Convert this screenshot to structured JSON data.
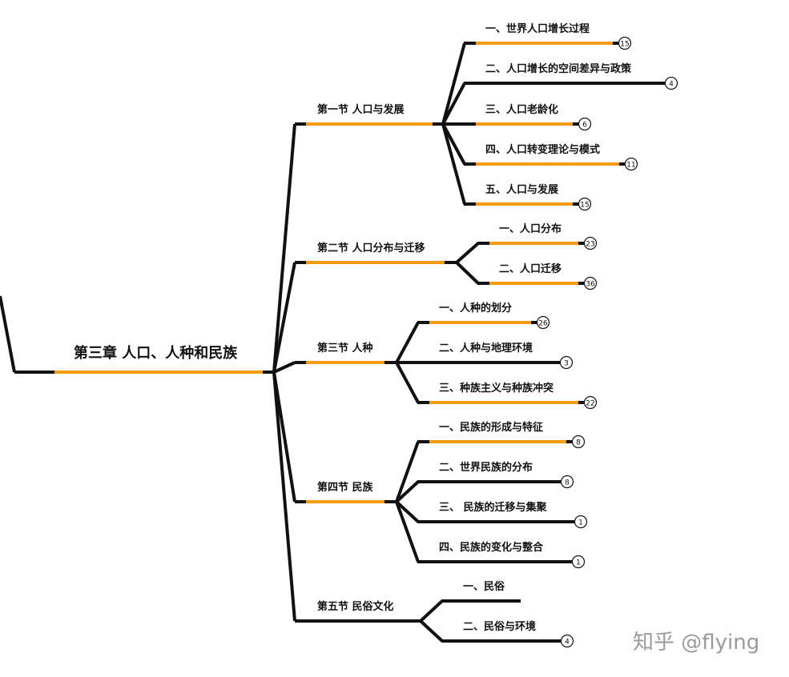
{
  "root": {
    "label": "第三章 人口、人种和民族",
    "highlighted": true
  },
  "colors": {
    "line": "#111111",
    "accent": "#f39c12"
  },
  "sections": [
    {
      "label": "第一节 人口与发展",
      "highlighted": true,
      "children": [
        {
          "label": "一、世界人口增长过程",
          "count": "15",
          "highlighted": true
        },
        {
          "label": "二、人口增长的空间差异与政策",
          "count": "4",
          "highlighted": false
        },
        {
          "label": "三、人口老龄化",
          "count": "6",
          "highlighted": true
        },
        {
          "label": "四、人口转变理论与模式",
          "count": "11",
          "highlighted": true
        },
        {
          "label": "五、人口与发展",
          "count": "15",
          "highlighted": true
        }
      ]
    },
    {
      "label": "第二节 人口分布与迁移",
      "highlighted": true,
      "children": [
        {
          "label": "一、人口分布",
          "count": "23",
          "highlighted": true
        },
        {
          "label": "二、人口迁移",
          "count": "36",
          "highlighted": true
        }
      ]
    },
    {
      "label": "第三节 人种",
      "highlighted": true,
      "children": [
        {
          "label": "一、人种的划分",
          "count": "26",
          "highlighted": true
        },
        {
          "label": "二、人种与地理环境",
          "count": "3",
          "highlighted": false
        },
        {
          "label": "三、种族主义与种族冲突",
          "count": "22",
          "highlighted": true
        }
      ]
    },
    {
      "label": "第四节 民族",
      "highlighted": true,
      "children": [
        {
          "label": "一、民族的形成与特征",
          "count": "8",
          "highlighted": true
        },
        {
          "label": "二、世界民族的分布",
          "count": "8",
          "highlighted": false
        },
        {
          "label": "三、 民族的迁移与集聚",
          "count": "1",
          "highlighted": false
        },
        {
          "label": "四、民族的变化与整合",
          "count": "1",
          "highlighted": false
        }
      ]
    },
    {
      "label": "第五节 民俗文化",
      "highlighted": false,
      "children": [
        {
          "label": "一、民俗",
          "count": null,
          "highlighted": false
        },
        {
          "label": "二、民俗与环境",
          "count": "4",
          "highlighted": false
        }
      ]
    }
  ],
  "watermark": "知乎 @flying"
}
